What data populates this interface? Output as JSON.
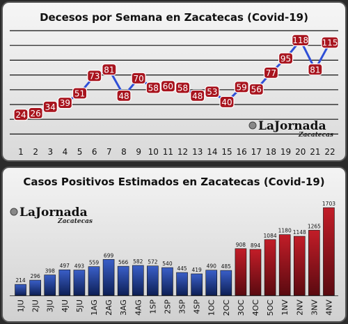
{
  "colors": {
    "line": "#2f4fd6",
    "marker": "#a8141e",
    "blue_bar": "#1b3a8a",
    "red_bar": "#a0121c",
    "grid": "#111111"
  },
  "logo_text": {
    "main": "LaJornada",
    "sub": "Zacatecas"
  },
  "chart_data": [
    {
      "type": "line",
      "title": "Decesos por Semana en Zacatecas (Covid-19)",
      "x": [
        1,
        2,
        3,
        4,
        5,
        6,
        7,
        8,
        9,
        10,
        11,
        12,
        13,
        14,
        15,
        16,
        17,
        18,
        19,
        20,
        21,
        22
      ],
      "values": [
        24,
        26,
        34,
        39,
        51,
        73,
        81,
        48,
        70,
        58,
        60,
        58,
        48,
        53,
        40,
        59,
        56,
        77,
        95,
        118,
        81,
        115
      ],
      "ylim": [
        0,
        130
      ],
      "grid": true,
      "xlabel": "",
      "ylabel": ""
    },
    {
      "type": "bar",
      "title": "Casos Positivos Estimados en Zacatecas (Covid-19)",
      "categories": [
        "1JU",
        "2JU",
        "3JU",
        "4JU",
        "5JU",
        "1AG",
        "2AG",
        "3AG",
        "4AG",
        "1SP",
        "2SP",
        "3SP",
        "4SP",
        "1OC",
        "2OC",
        "3OC",
        "4OC",
        "5OC",
        "1NV",
        "2NV",
        "3NV",
        "4NV"
      ],
      "values": [
        214,
        296,
        398,
        497,
        493,
        559,
        699,
        566,
        582,
        572,
        540,
        445,
        419,
        490,
        485,
        908,
        894,
        1084,
        1180,
        1148,
        1265,
        1703
      ],
      "colors_by_index": "blue for indices 0-14, red for indices 15-21",
      "ylim": [
        0,
        1800
      ],
      "grid": false,
      "xlabel": "",
      "ylabel": ""
    }
  ]
}
